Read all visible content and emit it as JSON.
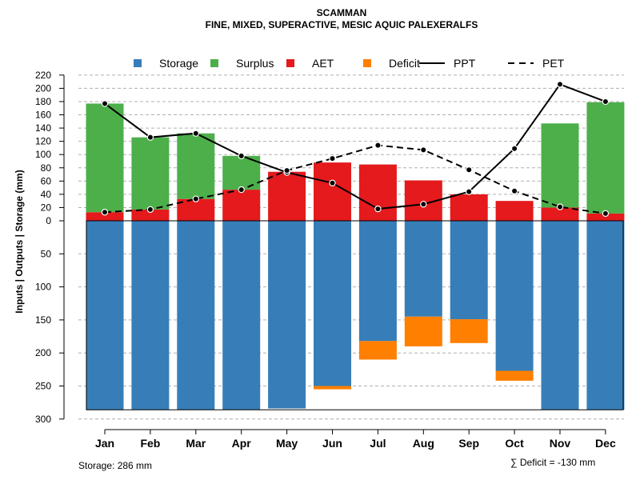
{
  "chart_data": {
    "type": "bar",
    "title": "SCAMMAN",
    "subtitle": "FINE, MIXED, SUPERACTIVE, MESIC AQUIC PALEXERALFS",
    "ylabel": "Inputs | Outputs | Storage     (mm)",
    "categories": [
      "Jan",
      "Feb",
      "Mar",
      "Apr",
      "May",
      "Jun",
      "Jul",
      "Aug",
      "Sep",
      "Oct",
      "Nov",
      "Dec"
    ],
    "y_upper_ticks": [
      0,
      20,
      40,
      60,
      80,
      100,
      120,
      140,
      160,
      180,
      200,
      220
    ],
    "y_lower_ticks": [
      50,
      100,
      150,
      200,
      250,
      300
    ],
    "upper_range": [
      0,
      220
    ],
    "lower_range": [
      0,
      300
    ],
    "legend": [
      {
        "label": "Storage",
        "kind": "box",
        "color": "#377EB8"
      },
      {
        "label": "Surplus",
        "kind": "box",
        "color": "#4DAF4A"
      },
      {
        "label": "AET",
        "kind": "box",
        "color": "#E41A1C"
      },
      {
        "label": "Deficit",
        "kind": "box",
        "color": "#FF7F00"
      },
      {
        "label": "PPT",
        "kind": "solid",
        "color": "#000000"
      },
      {
        "label": "PET",
        "kind": "dashed",
        "color": "#000000"
      }
    ],
    "series": [
      {
        "name": "AET",
        "color": "#E41A1C",
        "values": [
          13,
          17,
          33,
          47,
          74,
          88,
          85,
          61,
          40,
          30,
          20,
          11
        ]
      },
      {
        "name": "Surplus",
        "color": "#4DAF4A",
        "values": [
          164,
          109,
          99,
          51,
          0,
          0,
          0,
          0,
          0,
          0,
          127,
          168
        ]
      },
      {
        "name": "Storage",
        "color": "#377EB8",
        "values": [
          286,
          286,
          286,
          286,
          284,
          250,
          182,
          145,
          149,
          227,
          286,
          286
        ]
      },
      {
        "name": "Deficit",
        "color": "#FF7F00",
        "values": [
          0,
          0,
          0,
          0,
          0,
          5,
          28,
          45,
          36,
          15,
          0,
          0
        ]
      },
      {
        "name": "PPT",
        "color": "#000000",
        "values": [
          177,
          126,
          132,
          98,
          73,
          57,
          18,
          25,
          44,
          109,
          206,
          180
        ]
      },
      {
        "name": "PET",
        "color": "#000000",
        "values": [
          13,
          17,
          33,
          47,
          76,
          94,
          114,
          107,
          77,
          45,
          21,
          11
        ]
      }
    ],
    "storage_capacity": 286
  },
  "footer": {
    "storage_label": "Storage: 286 mm",
    "deficit_label": "∑ Deficit = -130 mm"
  }
}
